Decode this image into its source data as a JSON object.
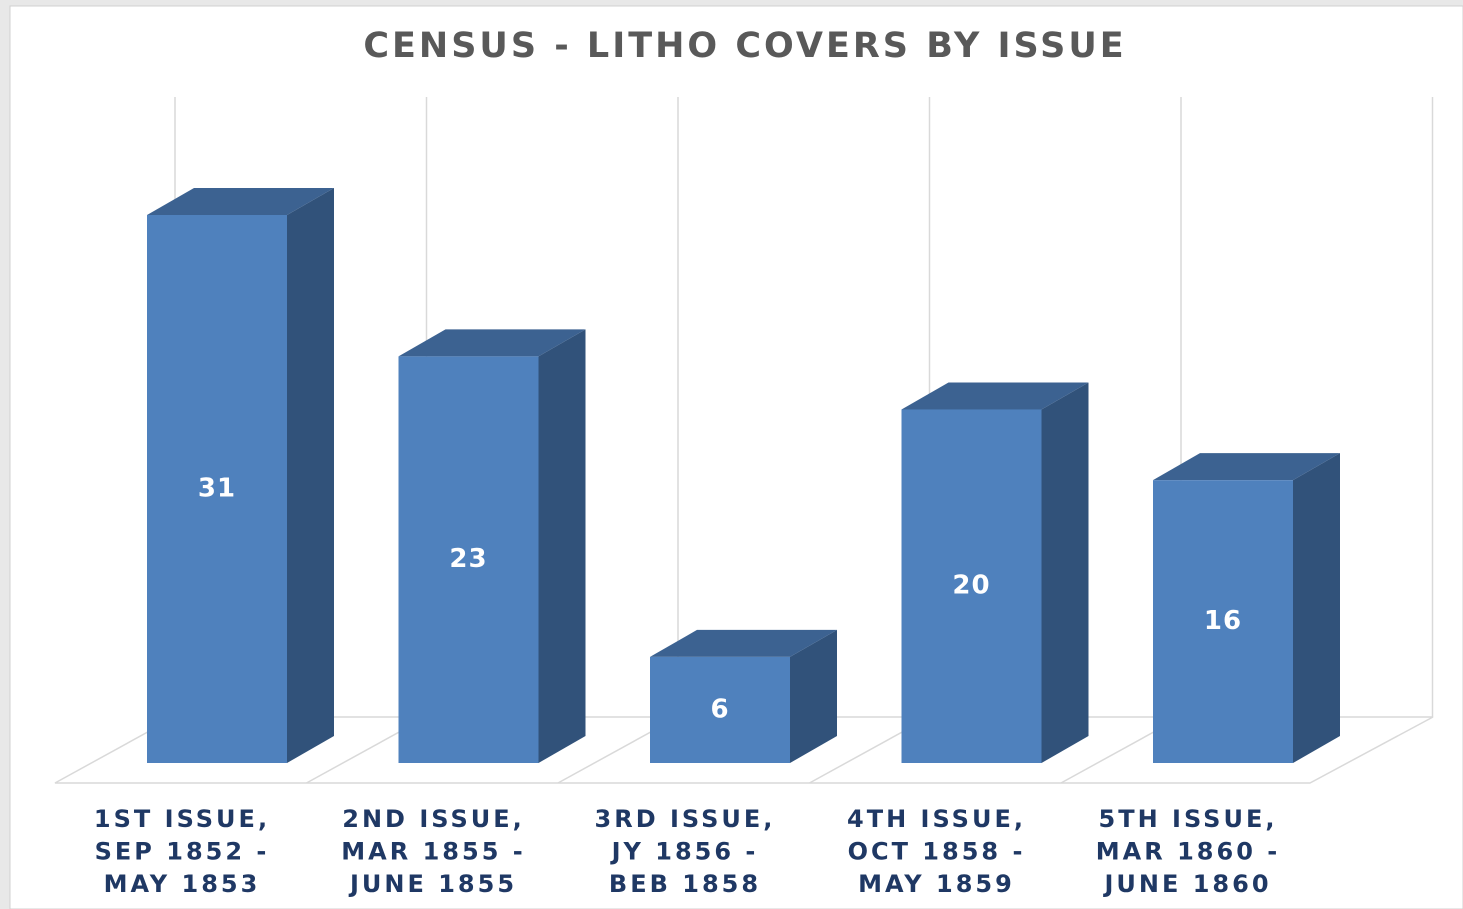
{
  "chart_data": {
    "type": "bar3d",
    "title": "CENSUS - LITHO COVERS BY ISSUE",
    "categories": [
      [
        "1ST ISSUE,",
        "SEP 1852 -",
        "MAY 1853"
      ],
      [
        "2ND ISSUE,",
        "MAR 1855 -",
        "JUNE 1855"
      ],
      [
        "3RD ISSUE,",
        "JY 1856 -",
        "BEB 1858"
      ],
      [
        "4TH ISSUE,",
        "OCT 1858 -",
        "MAY 1859"
      ],
      [
        "5TH ISSUE,",
        "MAR 1860 -",
        "JUNE 1860"
      ]
    ],
    "values": [
      31,
      23,
      6,
      20,
      16
    ],
    "color": "#4f81bd"
  }
}
